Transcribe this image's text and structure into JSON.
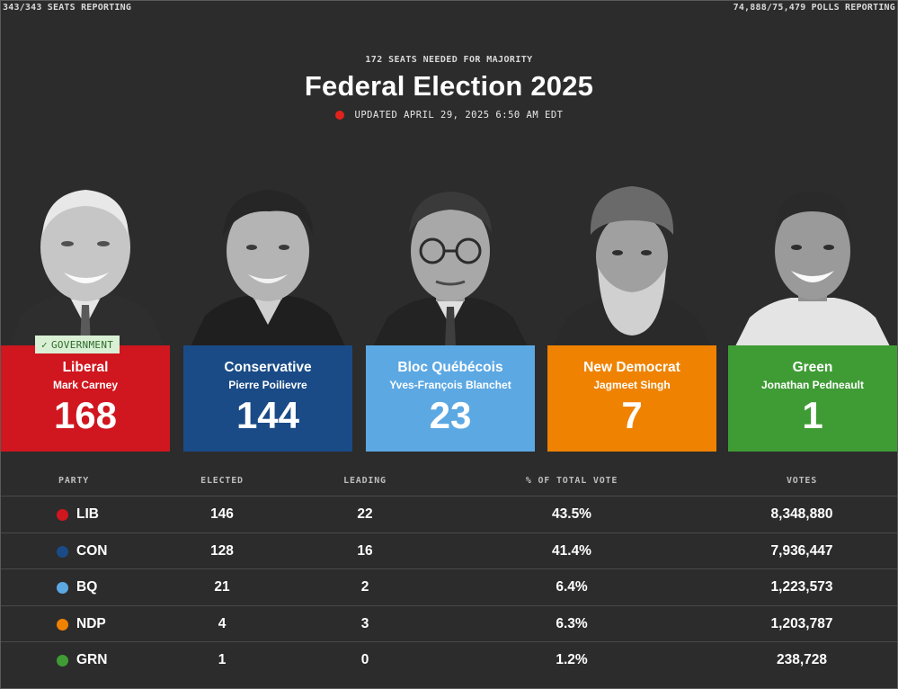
{
  "topbar": {
    "seats_reporting": "343/343 SEATS REPORTING",
    "polls_reporting": "74,888/75,479 POLLS REPORTING"
  },
  "header": {
    "majority": "172 SEATS NEEDED FOR MAJORITY",
    "title": "Federal Election 2025",
    "updated": "UPDATED APRIL 29, 2025 6:50 AM EDT"
  },
  "colors": {
    "lib": "#d0161e",
    "con": "#1a4b87",
    "bq": "#5ca8e3",
    "ndp": "#ef8200",
    "grn": "#3f9c35"
  },
  "cards": [
    {
      "party": "Liberal",
      "leader": "Mark Carney",
      "seats": "168",
      "color": "#d0161e",
      "badge": "GOVERNMENT"
    },
    {
      "party": "Conservative",
      "leader": "Pierre Poilievre",
      "seats": "144",
      "color": "#1a4b87"
    },
    {
      "party": "Bloc Québécois",
      "leader": "Yves-François Blanchet",
      "seats": "23",
      "color": "#5ca8e3"
    },
    {
      "party": "New Democrat",
      "leader": "Jagmeet Singh",
      "seats": "7",
      "color": "#ef8200"
    },
    {
      "party": "Green",
      "leader": "Jonathan Pedneault",
      "seats": "1",
      "color": "#3f9c35"
    }
  ],
  "table": {
    "headers": {
      "party": "PARTY",
      "elected": "ELECTED",
      "leading": "LEADING",
      "pct": "% OF TOTAL VOTE",
      "votes": "VOTES"
    },
    "rows": [
      {
        "abbr": "LIB",
        "elected": "146",
        "leading": "22",
        "pct": "43.5%",
        "votes": "8,348,880",
        "color": "#d0161e"
      },
      {
        "abbr": "CON",
        "elected": "128",
        "leading": "16",
        "pct": "41.4%",
        "votes": "7,936,447",
        "color": "#1a4b87"
      },
      {
        "abbr": "BQ",
        "elected": "21",
        "leading": "2",
        "pct": "6.4%",
        "votes": "1,223,573",
        "color": "#5ca8e3"
      },
      {
        "abbr": "NDP",
        "elected": "4",
        "leading": "3",
        "pct": "6.3%",
        "votes": "1,203,787",
        "color": "#ef8200"
      },
      {
        "abbr": "GRN",
        "elected": "1",
        "leading": "0",
        "pct": "1.2%",
        "votes": "238,728",
        "color": "#3f9c35"
      }
    ]
  }
}
